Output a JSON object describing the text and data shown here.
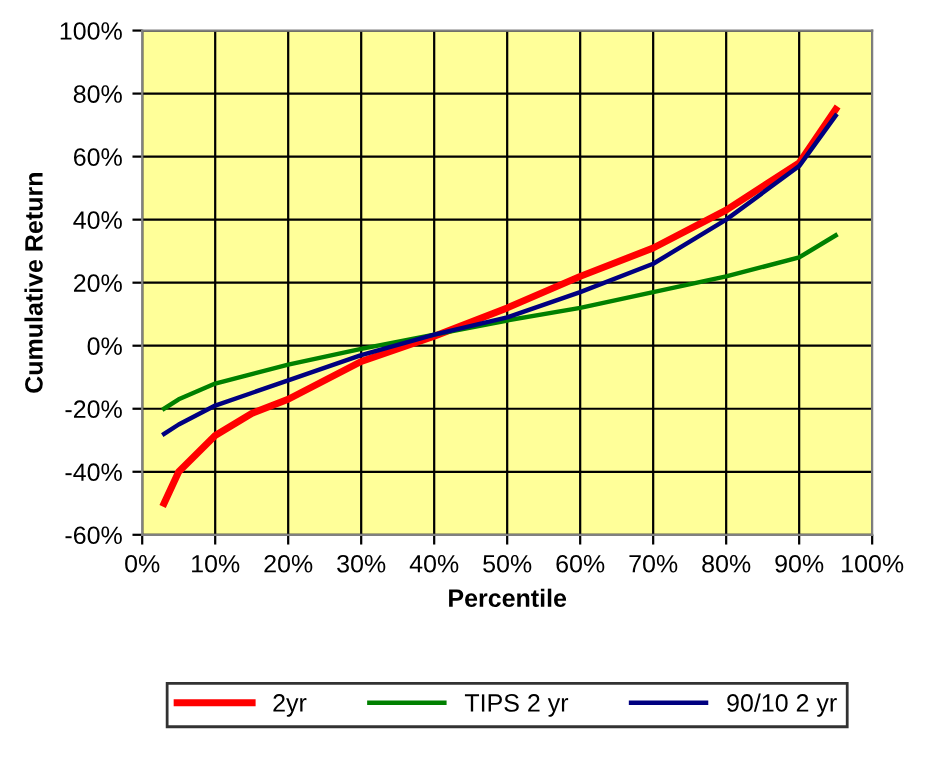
{
  "chart_data": {
    "type": "line",
    "xlabel": "Percentile",
    "ylabel": "Cumulative Return",
    "x": [
      3,
      5,
      10,
      15,
      20,
      30,
      40,
      50,
      60,
      70,
      80,
      90,
      95
    ],
    "series": [
      {
        "name": "2yr",
        "color": "#ff0000",
        "values": [
          -50,
          -40,
          -28.5,
          -21.5,
          -17,
          -5,
          3,
          12,
          22,
          31,
          43,
          58,
          75
        ]
      },
      {
        "name": "TIPS 2 yr",
        "color": "#008000",
        "values": [
          -20,
          -17,
          -12,
          -9,
          -6,
          -1,
          3.5,
          8,
          12,
          17,
          22,
          28,
          35
        ]
      },
      {
        "name": "90/10 2 yr",
        "color": "#000080",
        "values": [
          -28,
          -25,
          -19,
          -15,
          -11,
          -3,
          3.5,
          9,
          17,
          26,
          40,
          57,
          73
        ]
      }
    ],
    "xlim": [
      0,
      100
    ],
    "ylim": [
      -60,
      100
    ],
    "xticks": [
      {
        "value": 0,
        "label": "0%"
      },
      {
        "value": 10,
        "label": "10%"
      },
      {
        "value": 20,
        "label": "20%"
      },
      {
        "value": 30,
        "label": "30%"
      },
      {
        "value": 40,
        "label": "40%"
      },
      {
        "value": 50,
        "label": "50%"
      },
      {
        "value": 60,
        "label": "60%"
      },
      {
        "value": 70,
        "label": "70%"
      },
      {
        "value": 80,
        "label": "80%"
      },
      {
        "value": 90,
        "label": "90%"
      },
      {
        "value": 100,
        "label": "100%"
      }
    ],
    "yticks": [
      {
        "value": -60,
        "label": "-60%"
      },
      {
        "value": -40,
        "label": "-40%"
      },
      {
        "value": -20,
        "label": "-20%"
      },
      {
        "value": 0,
        "label": "0%"
      },
      {
        "value": 20,
        "label": "20%"
      },
      {
        "value": 40,
        "label": "40%"
      },
      {
        "value": 60,
        "label": "60%"
      },
      {
        "value": 80,
        "label": "80%"
      },
      {
        "value": 100,
        "label": "100%"
      }
    ],
    "grid": true,
    "legend": "bottom",
    "marker": "none",
    "line_style": "solid"
  }
}
